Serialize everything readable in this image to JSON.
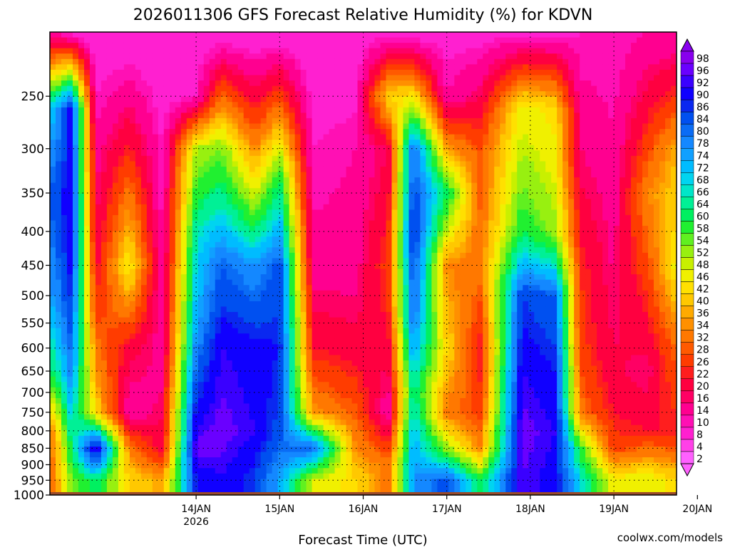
{
  "chart_data": {
    "type": "heatmap",
    "title": "2026011306 GFS Forecast Relative Humidity (%) for KDVN",
    "xlabel": "Forecast Time (UTC)",
    "ylabel": "",
    "y_scale": "log pressure (hPa), inverted",
    "ylim": [
      1000,
      200
    ],
    "yticks": [
      250,
      300,
      350,
      400,
      450,
      500,
      550,
      600,
      650,
      700,
      750,
      800,
      850,
      900,
      950,
      1000
    ],
    "xticks": [
      {
        "label": "14JAN",
        "sublabel": "2026",
        "day": 1.0
      },
      {
        "label": "15JAN",
        "sublabel": "",
        "day": 2.0
      },
      {
        "label": "16JAN",
        "sublabel": "",
        "day": 3.0
      },
      {
        "label": "17JAN",
        "sublabel": "",
        "day": 4.0
      },
      {
        "label": "18JAN",
        "sublabel": "",
        "day": 5.0
      },
      {
        "label": "19JAN",
        "sublabel": "",
        "day": 6.0
      },
      {
        "label": "20JAN",
        "sublabel": "",
        "day": 7.0
      }
    ],
    "xlim_days": [
      -0.75,
      6.75
    ],
    "grid": true,
    "colorbar": {
      "labels": [
        98,
        96,
        92,
        90,
        86,
        84,
        80,
        78,
        74,
        72,
        68,
        66,
        64,
        60,
        58,
        54,
        52,
        48,
        46,
        42,
        40,
        36,
        34,
        32,
        28,
        26,
        22,
        20,
        16,
        14,
        10,
        8,
        4,
        2
      ],
      "colors": [
        "#8800ee",
        "#6a00ff",
        "#3a00ff",
        "#1000ff",
        "#0a28f0",
        "#0050f0",
        "#0a6cf5",
        "#1488ff",
        "#10a0ff",
        "#00bcff",
        "#00d4f0",
        "#00e6c8",
        "#00f096",
        "#00f060",
        "#20f030",
        "#60f020",
        "#98f010",
        "#c8f000",
        "#f0f000",
        "#ffe000",
        "#ffc800",
        "#ffaa00",
        "#ff9000",
        "#ff7800",
        "#ff5a00",
        "#ff3c00",
        "#ff1e1e",
        "#ff0040",
        "#ff0064",
        "#ff0090",
        "#ff10b4",
        "#ff20d0",
        "#ff40e8",
        "#ff60ff"
      ]
    },
    "humidity_columns": [
      {
        "day": -0.7,
        "profile": [
          [
            200,
            10
          ],
          [
            260,
            70
          ],
          [
            350,
            82
          ],
          [
            500,
            74
          ],
          [
            650,
            60
          ],
          [
            800,
            34
          ],
          [
            950,
            30
          ]
        ]
      },
      {
        "day": -0.5,
        "profile": [
          [
            200,
            6
          ],
          [
            260,
            88
          ],
          [
            400,
            90
          ],
          [
            550,
            82
          ],
          [
            700,
            72
          ],
          [
            850,
            58
          ],
          [
            950,
            52
          ]
        ]
      },
      {
        "day": -0.2,
        "profile": [
          [
            200,
            4
          ],
          [
            300,
            12
          ],
          [
            450,
            18
          ],
          [
            600,
            30
          ],
          [
            750,
            40
          ],
          [
            850,
            94
          ],
          [
            950,
            60
          ]
        ]
      },
      {
        "day": 0.2,
        "profile": [
          [
            200,
            4
          ],
          [
            350,
            30
          ],
          [
            450,
            44
          ],
          [
            600,
            18
          ],
          [
            750,
            10
          ],
          [
            850,
            30
          ],
          [
            950,
            40
          ]
        ]
      },
      {
        "day": 0.6,
        "profile": [
          [
            200,
            4
          ],
          [
            300,
            8
          ],
          [
            500,
            10
          ],
          [
            700,
            14
          ],
          [
            850,
            18
          ],
          [
            950,
            34
          ]
        ]
      },
      {
        "day": 1.0,
        "profile": [
          [
            200,
            4
          ],
          [
            250,
            8
          ],
          [
            300,
            48
          ],
          [
            400,
            64
          ],
          [
            550,
            72
          ],
          [
            700,
            84
          ],
          [
            850,
            94
          ],
          [
            950,
            86
          ]
        ]
      },
      {
        "day": 1.3,
        "profile": [
          [
            200,
            4
          ],
          [
            300,
            52
          ],
          [
            450,
            80
          ],
          [
            600,
            90
          ],
          [
            800,
            94
          ],
          [
            950,
            90
          ]
        ]
      },
      {
        "day": 1.7,
        "profile": [
          [
            200,
            4
          ],
          [
            330,
            40
          ],
          [
            450,
            74
          ],
          [
            600,
            88
          ],
          [
            800,
            90
          ],
          [
            950,
            84
          ]
        ]
      },
      {
        "day": 2.0,
        "profile": [
          [
            200,
            4
          ],
          [
            330,
            58
          ],
          [
            450,
            82
          ],
          [
            600,
            86
          ],
          [
            800,
            82
          ],
          [
            950,
            72
          ]
        ]
      },
      {
        "day": 2.4,
        "profile": [
          [
            200,
            4
          ],
          [
            300,
            8
          ],
          [
            450,
            12
          ],
          [
            600,
            20
          ],
          [
            750,
            34
          ],
          [
            850,
            80
          ],
          [
            950,
            46
          ]
        ]
      },
      {
        "day": 2.9,
        "profile": [
          [
            200,
            4
          ],
          [
            300,
            10
          ],
          [
            450,
            12
          ],
          [
            600,
            18
          ],
          [
            800,
            30
          ],
          [
            950,
            40
          ]
        ]
      },
      {
        "day": 3.3,
        "profile": [
          [
            200,
            6
          ],
          [
            250,
            40
          ],
          [
            300,
            16
          ],
          [
            450,
            24
          ],
          [
            600,
            18
          ],
          [
            750,
            10
          ],
          [
            900,
            30
          ]
        ]
      },
      {
        "day": 3.6,
        "profile": [
          [
            200,
            4
          ],
          [
            300,
            80
          ],
          [
            400,
            86
          ],
          [
            550,
            78
          ],
          [
            700,
            62
          ],
          [
            800,
            70
          ],
          [
            950,
            74
          ]
        ]
      },
      {
        "day": 4.0,
        "profile": [
          [
            200,
            6
          ],
          [
            250,
            10
          ],
          [
            350,
            60
          ],
          [
            450,
            32
          ],
          [
            600,
            40
          ],
          [
            750,
            30
          ],
          [
            850,
            50
          ],
          [
            950,
            82
          ]
        ]
      },
      {
        "day": 4.4,
        "profile": [
          [
            200,
            6
          ],
          [
            300,
            26
          ],
          [
            450,
            30
          ],
          [
            600,
            20
          ],
          [
            750,
            24
          ],
          [
            850,
            32
          ],
          [
            950,
            58
          ]
        ]
      },
      {
        "day": 4.9,
        "profile": [
          [
            200,
            6
          ],
          [
            260,
            44
          ],
          [
            400,
            58
          ],
          [
            500,
            84
          ],
          [
            650,
            90
          ],
          [
            800,
            94
          ],
          [
            950,
            92
          ]
        ]
      },
      {
        "day": 5.3,
        "profile": [
          [
            200,
            6
          ],
          [
            260,
            40
          ],
          [
            400,
            50
          ],
          [
            500,
            80
          ],
          [
            650,
            86
          ],
          [
            800,
            90
          ],
          [
            950,
            88
          ]
        ]
      },
      {
        "day": 5.6,
        "profile": [
          [
            200,
            8
          ],
          [
            300,
            14
          ],
          [
            450,
            22
          ],
          [
            600,
            24
          ],
          [
            750,
            30
          ],
          [
            850,
            56
          ],
          [
            950,
            66
          ]
        ]
      },
      {
        "day": 6.0,
        "profile": [
          [
            200,
            8
          ],
          [
            350,
            12
          ],
          [
            500,
            14
          ],
          [
            700,
            18
          ],
          [
            850,
            24
          ],
          [
            950,
            44
          ]
        ]
      },
      {
        "day": 6.4,
        "profile": [
          [
            200,
            10
          ],
          [
            350,
            32
          ],
          [
            500,
            22
          ],
          [
            650,
            14
          ],
          [
            800,
            20
          ],
          [
            950,
            46
          ]
        ]
      },
      {
        "day": 6.75,
        "profile": [
          [
            200,
            10
          ],
          [
            300,
            36
          ],
          [
            450,
            44
          ],
          [
            600,
            28
          ],
          [
            800,
            20
          ],
          [
            950,
            40
          ]
        ]
      }
    ]
  },
  "watermark": "coolwx.com/models",
  "colors": {
    "terrain": "#9a4a2a",
    "watermark": "#e60000",
    "grid": "#000000"
  }
}
